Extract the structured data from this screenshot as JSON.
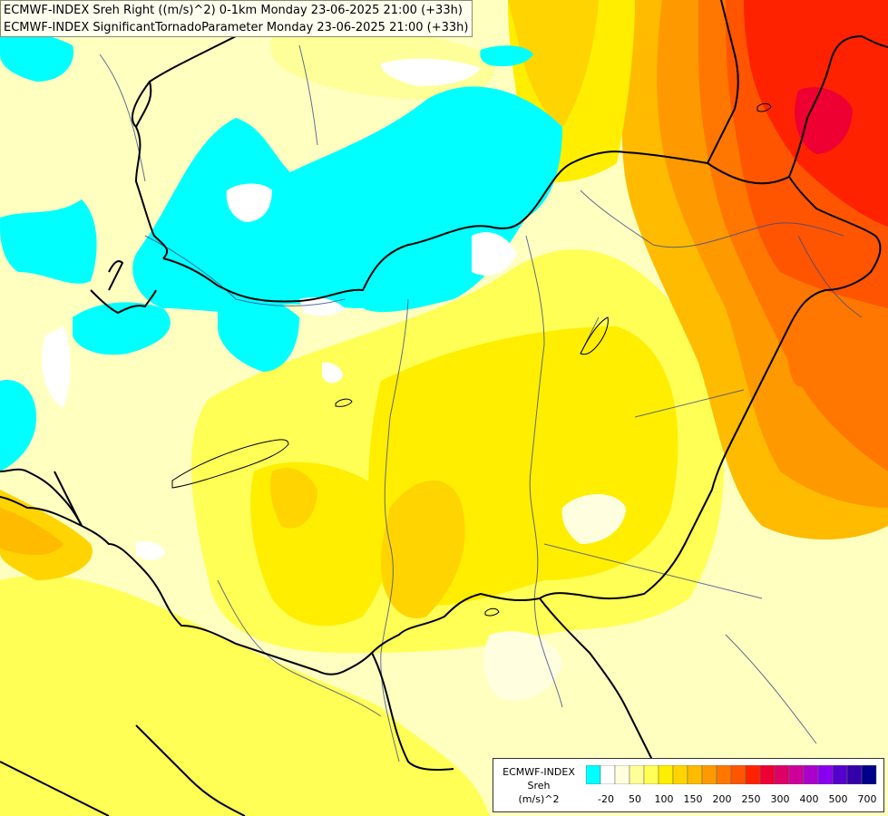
{
  "header": {
    "line1": "ECMWF-INDEX Sreh Right ((m/s)^2) 0-1km Monday 23-06-2025 21:00 (+33h)",
    "line2": "ECMWF-INDEX SignificantTornadoParameter Monday 23-06-2025 21:00 (+33h)"
  },
  "legend": {
    "title1": "ECMWF-INDEX",
    "title2": "Sreh",
    "title3": "(m/s)^2",
    "colors": [
      "#00ffff",
      "#ffffff",
      "#ffffe0",
      "#ffff99",
      "#ffff55",
      "#ffee00",
      "#ffd400",
      "#ffbb00",
      "#ff9900",
      "#ff7700",
      "#ff5500",
      "#ff2200",
      "#ee0033",
      "#dd0066",
      "#cc0099",
      "#aa00cc",
      "#8800ee",
      "#5500cc",
      "#3300aa",
      "#000088"
    ],
    "ticks": [
      "-20",
      "50",
      "100",
      "150",
      "200",
      "250",
      "300",
      "400",
      "500",
      "700"
    ]
  },
  "colors": {
    "cyan_stp": "#00ffff",
    "border_line": "#000000",
    "river_line": "#3a4a8a"
  }
}
